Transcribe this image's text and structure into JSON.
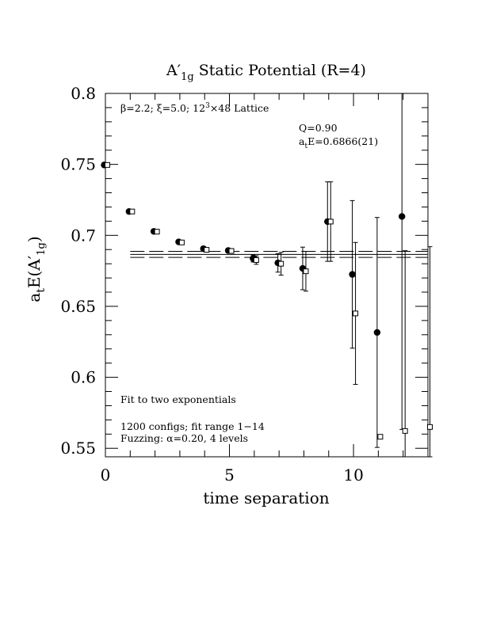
{
  "chart_data": {
    "type": "scatter",
    "title": "A′1g Static Potential (R=4)",
    "title_parts": {
      "a": "A",
      "prime": "′",
      "sub": "1g",
      "rest": " Static Potential (R=4)"
    },
    "xlabel": "time separation",
    "ylabel": "atE(A′1g)",
    "ylabel_parts": {
      "a": "a",
      "sub_t": "t",
      "e": "E(A",
      "prime": "′",
      "sub_1g": "1g",
      "close": ")"
    },
    "xlim": [
      0,
      13
    ],
    "ylim": [
      0.544,
      0.8
    ],
    "x_ticks": [
      0,
      5,
      10
    ],
    "x_tick_labels": [
      "0",
      "5",
      "10"
    ],
    "y_ticks": [
      0.55,
      0.6,
      0.65,
      0.7,
      0.75,
      0.8
    ],
    "y_tick_labels": [
      "0.55",
      "0.6",
      "0.65",
      "0.7",
      "0.75",
      "0.8"
    ],
    "annotations": {
      "lattice": {
        "beta": "β=2.2; ξ=5.0; 12",
        "sup": "3",
        "rest": "×48 Lattice"
      },
      "q": "Q=0.90",
      "ate": {
        "a": "a",
        "sub": "t",
        "rest": "E=0.6866(21)"
      },
      "fit_desc": "Fit to two exponentials",
      "configs": "1200 configs; fit range 1−14",
      "fuzzing": "Fuzzing: α=0.20, 4 levels"
    },
    "fit": {
      "value": 0.6866,
      "error": 0.0021
    },
    "series": [
      {
        "marker": "filled-circle",
        "points": [
          {
            "x": 0,
            "y": 0.7496,
            "err": 0.0004
          },
          {
            "x": 1,
            "y": 0.7168,
            "err": 0.0005
          },
          {
            "x": 2,
            "y": 0.7028,
            "err": 0.0007
          },
          {
            "x": 3,
            "y": 0.6954,
            "err": 0.0008
          },
          {
            "x": 4,
            "y": 0.6906,
            "err": 0.001
          },
          {
            "x": 5,
            "y": 0.6893,
            "err": 0.0015
          },
          {
            "x": 6,
            "y": 0.6837,
            "err": 0.0025
          },
          {
            "x": 7,
            "y": 0.6806,
            "err": 0.0065
          },
          {
            "x": 8,
            "y": 0.6767,
            "err": 0.015
          },
          {
            "x": 9,
            "y": 0.7097,
            "err": 0.028
          },
          {
            "x": 10,
            "y": 0.6725,
            "err": 0.052
          },
          {
            "x": 11,
            "y": 0.6316,
            "err": 0.081
          },
          {
            "x": 12,
            "y": 0.7133,
            "err": 0.15
          }
        ]
      },
      {
        "marker": "open-square",
        "points": [
          {
            "x": 0,
            "y": 0.7496,
            "err": 0.0004
          },
          {
            "x": 1,
            "y": 0.7168,
            "err": 0.0005
          },
          {
            "x": 2,
            "y": 0.7026,
            "err": 0.0007
          },
          {
            "x": 3,
            "y": 0.695,
            "err": 0.0008
          },
          {
            "x": 4,
            "y": 0.6898,
            "err": 0.0012
          },
          {
            "x": 5,
            "y": 0.689,
            "err": 0.0016
          },
          {
            "x": 6,
            "y": 0.6826,
            "err": 0.003
          },
          {
            "x": 7,
            "y": 0.68,
            "err": 0.008
          },
          {
            "x": 8,
            "y": 0.6747,
            "err": 0.014
          },
          {
            "x": 9,
            "y": 0.7097,
            "err": 0.028
          },
          {
            "x": 10,
            "y": 0.645,
            "err": 0.05
          },
          {
            "x": 11,
            "y": 0.5581,
            "err": 0.0
          },
          {
            "x": 12,
            "y": 0.5622,
            "err": 0.127
          },
          {
            "x": 13,
            "y": 0.565,
            "err": 0.127
          }
        ]
      }
    ]
  }
}
